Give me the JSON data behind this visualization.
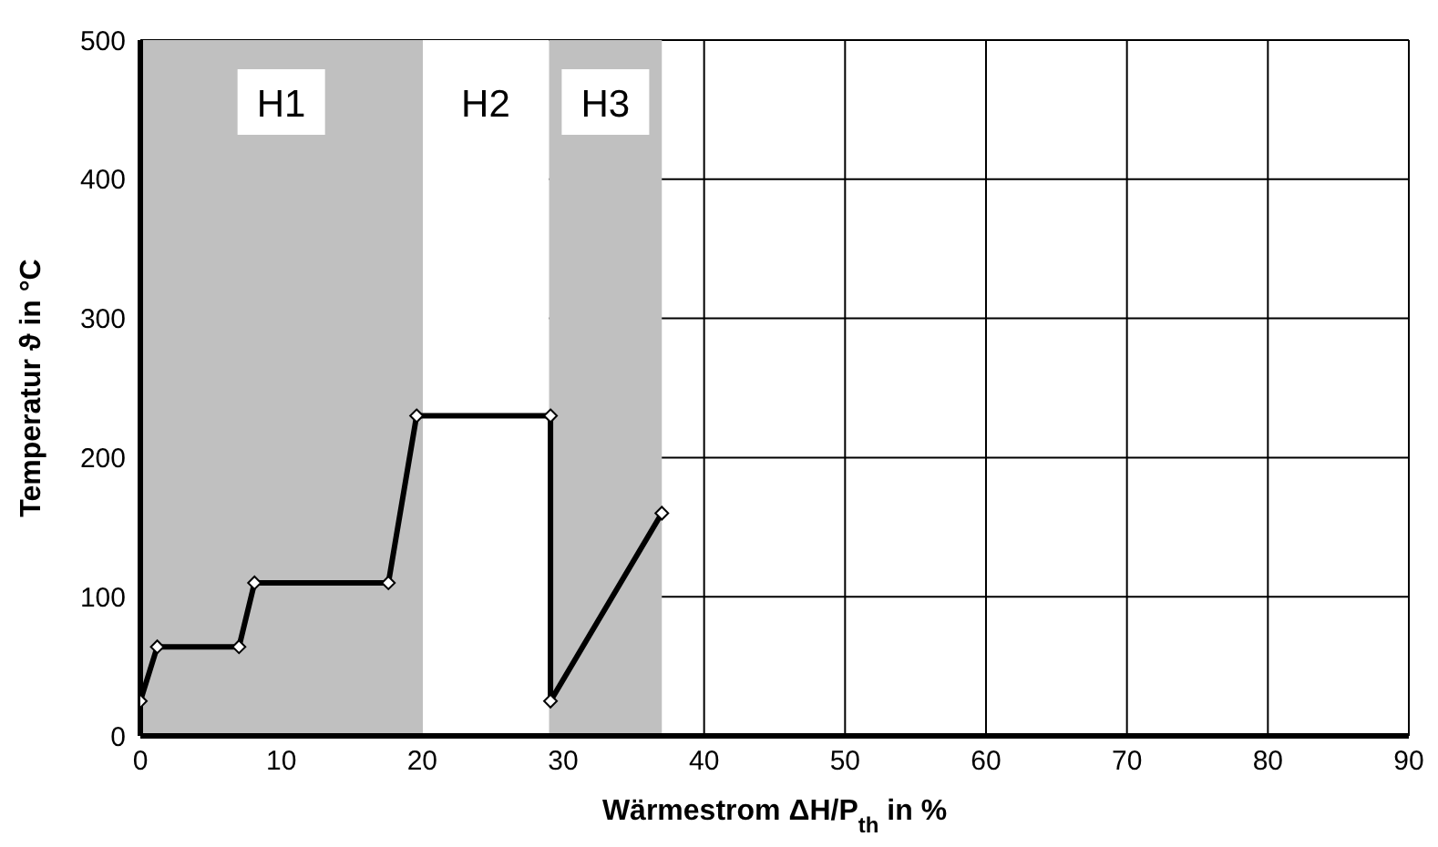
{
  "chart_data": {
    "type": "line",
    "xlabel": "Wärmestrom ΔH/P$_{th}$ in %",
    "ylabel": "Temperatur ϑ in °C",
    "x": [
      0,
      1.2,
      7.0,
      8.1,
      17.6,
      19.6,
      29.1,
      29.1,
      37.0
    ],
    "series": [
      {
        "color": "#000000",
        "values": [
          25,
          64,
          64,
          110,
          110,
          230,
          230,
          25,
          160
        ]
      }
    ],
    "xlim": [
      0,
      90
    ],
    "xticks": [
      0,
      10,
      20,
      30,
      40,
      50,
      60,
      70,
      80,
      90
    ],
    "ylim": [
      0,
      500
    ],
    "yticks": [
      0,
      100,
      200,
      300,
      400,
      500
    ],
    "bands": [
      {
        "axis": "x",
        "from": 0,
        "to": 20,
        "label": "H1",
        "color": "#c0c0c0"
      },
      {
        "axis": "x",
        "from": 20,
        "to": 29,
        "label": "H2",
        "color": "#ffffff"
      },
      {
        "axis": "x",
        "from": 29,
        "to": 37,
        "label": "H3",
        "color": "#c0c0c0"
      }
    ],
    "grid": true,
    "legend": false,
    "marker": "diamond",
    "line_style": "solid"
  }
}
